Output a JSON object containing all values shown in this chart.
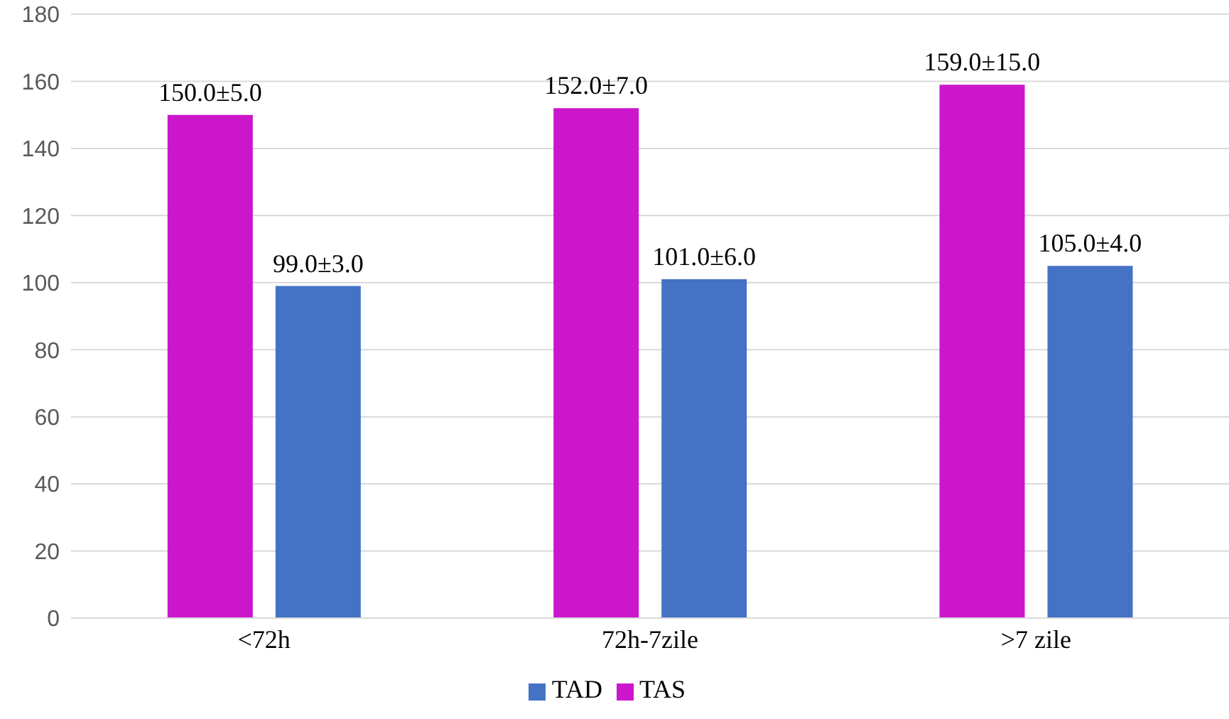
{
  "chart_data": {
    "type": "bar",
    "categories": [
      "<72h",
      "72h-7zile",
      ">7 zile"
    ],
    "series": [
      {
        "name": "TAS",
        "color": "#cc16cc",
        "values": [
          150,
          152,
          159
        ],
        "value_labels": [
          "150.0±5.0",
          "152.0±7.0",
          "159.0±15.0"
        ]
      },
      {
        "name": "TAD",
        "color": "#4472c4",
        "values": [
          99,
          101,
          105
        ],
        "value_labels": [
          "99.0±3.0",
          "101.0±6.0",
          "105.0±4.0"
        ]
      }
    ],
    "ylim": [
      0,
      180
    ],
    "yticks": [
      0,
      20,
      40,
      60,
      80,
      100,
      120,
      140,
      160,
      180
    ],
    "grid": "y",
    "legend": "bottom"
  }
}
